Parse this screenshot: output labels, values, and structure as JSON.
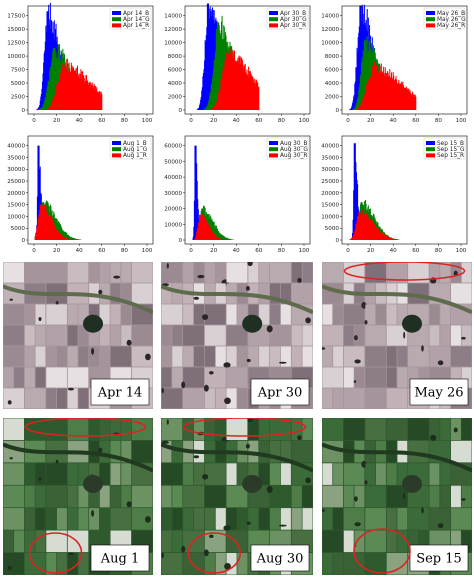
{
  "chart_data": [
    {
      "type": "bar",
      "id": "apr14",
      "position": "row1-col1",
      "x_range": [
        0,
        100
      ],
      "y_ticks": [
        0,
        2500,
        5000,
        7500,
        10000,
        12500,
        15000,
        17500
      ],
      "x_ticks": [
        0,
        20,
        40,
        60,
        80,
        100
      ],
      "legend_placement": "top-right",
      "series": [
        {
          "name": "Apr 14_B",
          "color": "#0000ff",
          "peak_x": 12,
          "peak_y": 18300,
          "spread": 3.0,
          "tail": 0.45
        },
        {
          "name": "Apr 14_G",
          "color": "#008000",
          "peak_x": 18,
          "peak_y": 11500,
          "spread": 4.5,
          "tail": 0.4
        },
        {
          "name": "Apr 14_R",
          "color": "#ff0000",
          "peak_x": 26,
          "peak_y": 8500,
          "spread": 5.5,
          "tail": 0.55
        }
      ]
    },
    {
      "type": "bar",
      "id": "apr30",
      "position": "row1-col2",
      "x_range": [
        0,
        100
      ],
      "y_ticks": [
        0,
        2000,
        4000,
        6000,
        8000,
        10000,
        12000,
        14000
      ],
      "x_ticks": [
        0,
        20,
        40,
        60,
        80,
        100
      ],
      "legend_placement": "top-right",
      "series": [
        {
          "name": "Apr 30_B",
          "color": "#0000ff",
          "peak_x": 15,
          "peak_y": 15800,
          "spread": 3.0,
          "tail": 0.45
        },
        {
          "name": "Apr 30_G",
          "color": "#008000",
          "peak_x": 24,
          "peak_y": 13000,
          "spread": 4.0,
          "tail": 0.4
        },
        {
          "name": "Apr 30_R",
          "color": "#ff0000",
          "peak_x": 32,
          "peak_y": 8500,
          "spread": 5.0,
          "tail": 0.55
        }
      ]
    },
    {
      "type": "bar",
      "id": "may26",
      "position": "row1-col3",
      "x_range": [
        0,
        100
      ],
      "y_ticks": [
        0,
        2000,
        4000,
        6000,
        8000,
        10000,
        12000,
        14000
      ],
      "x_ticks": [
        0,
        20,
        40,
        60,
        80,
        100
      ],
      "legend_placement": "top-right",
      "series": [
        {
          "name": "May 26_B",
          "color": "#0000ff",
          "peak_x": 11,
          "peak_y": 15500,
          "spread": 3.0,
          "tail": 0.45
        },
        {
          "name": "May 26_G",
          "color": "#008000",
          "peak_x": 15,
          "peak_y": 10300,
          "spread": 3.5,
          "tail": 0.45
        },
        {
          "name": "May 26_R",
          "color": "#ff0000",
          "peak_x": 22,
          "peak_y": 6500,
          "spread": 5.5,
          "tail": 0.6
        }
      ]
    },
    {
      "type": "bar",
      "id": "aug1",
      "position": "row2-col1",
      "x_range": [
        0,
        100
      ],
      "y_ticks": [
        0,
        5000,
        10000,
        15000,
        20000,
        25000,
        30000,
        35000,
        40000
      ],
      "x_ticks": [
        0,
        20,
        40,
        60,
        80,
        100
      ],
      "legend_placement": "top-right",
      "series": [
        {
          "name": "Aug 1_B",
          "color": "#0000ff",
          "peak_x": 4,
          "peak_y": 40000,
          "spread": 0.8,
          "tail": 0.25
        },
        {
          "name": "Aug 1_G",
          "color": "#008000",
          "peak_x": 8,
          "peak_y": 16000,
          "spread": 3.0,
          "tail": 0.45
        },
        {
          "name": "Aug 1_R",
          "color": "#ff0000",
          "peak_x": 6,
          "peak_y": 15000,
          "spread": 2.5,
          "tail": 0.45
        }
      ]
    },
    {
      "type": "bar",
      "id": "aug30",
      "position": "row2-col2",
      "x_range": [
        0,
        100
      ],
      "y_ticks": [
        0,
        10000,
        20000,
        30000,
        40000,
        50000,
        60000
      ],
      "x_ticks": [
        0,
        20,
        40,
        60,
        80,
        100
      ],
      "legend_placement": "top-right",
      "series": [
        {
          "name": "Aug 30_B",
          "color": "#0000ff",
          "peak_x": 4,
          "peak_y": 60000,
          "spread": 0.8,
          "tail": 0.2
        },
        {
          "name": "Aug 30_G",
          "color": "#008000",
          "peak_x": 10,
          "peak_y": 20000,
          "spread": 2.5,
          "tail": 0.45
        },
        {
          "name": "Aug 30_R",
          "color": "#ff0000",
          "peak_x": 8,
          "peak_y": 16000,
          "spread": 2.0,
          "tail": 0.45
        }
      ]
    },
    {
      "type": "bar",
      "id": "sep15",
      "position": "row2-col3",
      "x_range": [
        0,
        100
      ],
      "y_ticks": [
        0,
        5000,
        10000,
        15000,
        20000,
        25000,
        30000,
        35000,
        40000
      ],
      "x_ticks": [
        0,
        20,
        40,
        60,
        80,
        100
      ],
      "legend_placement": "top-right",
      "series": [
        {
          "name": "Sep 15_B",
          "color": "#0000ff",
          "peak_x": 6,
          "peak_y": 41000,
          "spread": 0.9,
          "tail": 0.25
        },
        {
          "name": "Sep 15_G",
          "color": "#008000",
          "peak_x": 12,
          "peak_y": 16000,
          "spread": 3.0,
          "tail": 0.45
        },
        {
          "name": "Sep 15_R",
          "color": "#ff0000",
          "peak_x": 10,
          "peak_y": 12000,
          "spread": 3.0,
          "tail": 0.5
        }
      ]
    }
  ],
  "satellite_panels": [
    {
      "label": "Apr 14",
      "scene": "early",
      "highlights": []
    },
    {
      "label": "Apr 30",
      "scene": "early",
      "highlights": []
    },
    {
      "label": "May 26",
      "scene": "early",
      "highlights": [
        "top"
      ]
    },
    {
      "label": "Aug 1",
      "scene": "green",
      "highlights": [
        "top",
        "bottom-left"
      ]
    },
    {
      "label": "Aug 30",
      "scene": "green",
      "highlights": [
        "top",
        "bottom-left"
      ]
    },
    {
      "label": "Sep 15",
      "scene": "green",
      "highlights": [
        "bottom-center"
      ]
    }
  ],
  "colors": {
    "blue": "#0000ff",
    "green": "#008000",
    "red": "#ff0000",
    "highlight": "#dd2222"
  }
}
